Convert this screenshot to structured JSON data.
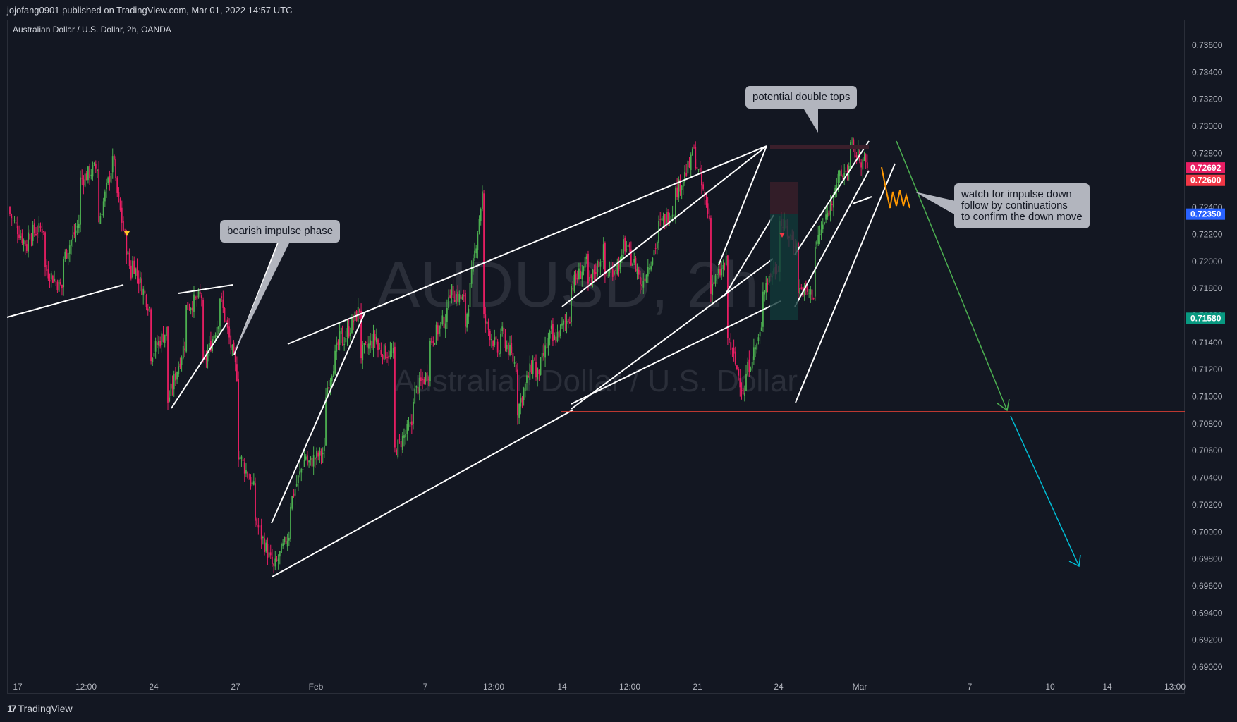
{
  "header": {
    "publish_text": "jojofang0901 published on TradingView.com, Mar 01, 2022 14:57 UTC"
  },
  "legend": {
    "symbol_text": "Australian Dollar / U.S. Dollar, 2h, OANDA"
  },
  "watermark": {
    "symbol": "AUDUSD, 2h",
    "name": "Australian Dollar / U.S. Dollar"
  },
  "footer": {
    "brand": "TradingView"
  },
  "annotations": {
    "bearish": "bearish impulse phase",
    "double_tops": "potential double tops",
    "watch": "watch for impulse down\nfollow by continuations\nto confirm the down move"
  },
  "colors": {
    "background": "#131722",
    "up": "#4caf50",
    "down": "#e91e63",
    "support": "#f44336",
    "arrow_green": "#4caf50",
    "arrow_cyan": "#00bcd4",
    "projection": "#ff9800"
  },
  "chart_data": {
    "type": "candlestick",
    "title": "Australian Dollar / U.S. Dollar, 2h, OANDA",
    "y_axis": {
      "min": 0.689,
      "max": 0.7375,
      "ticks": [
        0.736,
        0.734,
        0.732,
        0.73,
        0.728,
        0.726,
        0.724,
        0.722,
        0.72,
        0.718,
        0.716,
        0.714,
        0.712,
        0.71,
        0.708,
        0.706,
        0.704,
        0.702,
        0.7,
        0.698,
        0.696,
        0.694,
        0.692,
        0.69
      ],
      "tick_labels": [
        "0.73600",
        "0.73400",
        "0.73200",
        "0.73000",
        "0.72800",
        "0.72600",
        "0.72400",
        "0.72200",
        "0.72000",
        "0.71800",
        "0.71600",
        "0.71400",
        "0.71200",
        "0.71000",
        "0.70800",
        "0.70600",
        "0.70400",
        "0.70200",
        "0.70000",
        "0.69800",
        "0.69600",
        "0.69400",
        "0.69200",
        "0.69000"
      ]
    },
    "x_axis": {
      "tick_labels": [
        "17",
        "12:00",
        "24",
        "27",
        "Feb",
        "7",
        "12:00",
        "14",
        "12:00",
        "21",
        "24",
        "Mar",
        "7",
        "10",
        "14",
        "13:00"
      ]
    },
    "price_labels": [
      {
        "value": 0.72692,
        "text": "0.72692",
        "color": "#e91e63"
      },
      {
        "value": 0.726,
        "text": "0.72600",
        "color": "#f23645"
      },
      {
        "value": 0.7235,
        "text": "0.72350",
        "color": "#2962ff"
      },
      {
        "value": 0.7158,
        "text": "0.71580",
        "color": "#089981"
      }
    ],
    "price_path": [
      [
        0.724,
        0.7235
      ],
      [
        0.721,
        0.722
      ],
      [
        0.7225,
        0.7195
      ],
      [
        0.718,
        0.72
      ],
      [
        0.723,
        0.726
      ],
      [
        0.727,
        0.7225
      ],
      [
        0.728,
        0.726
      ],
      [
        0.7185,
        0.72
      ],
      [
        0.7165,
        0.713
      ],
      [
        0.715,
        0.7095
      ],
      [
        0.714,
        0.7165
      ],
      [
        0.7175,
        0.712
      ],
      [
        0.716,
        0.7175
      ],
      [
        0.7115,
        0.706
      ],
      [
        0.703,
        0.701
      ],
      [
        0.6975,
        0.697
      ],
      [
        0.7,
        0.702
      ],
      [
        0.706,
        0.705
      ],
      [
        0.706,
        0.71
      ],
      [
        0.715,
        0.714
      ],
      [
        0.7165,
        0.713
      ],
      [
        0.7145,
        0.7135
      ],
      [
        0.713,
        0.706
      ],
      [
        0.708,
        0.71
      ],
      [
        0.712,
        0.714
      ],
      [
        0.716,
        0.718
      ],
      [
        0.717,
        0.715
      ],
      [
        0.725,
        0.716
      ],
      [
        0.713,
        0.715
      ],
      [
        0.712,
        0.709
      ],
      [
        0.713,
        0.711
      ],
      [
        0.715,
        0.714
      ],
      [
        0.716,
        0.718
      ],
      [
        0.72,
        0.718
      ],
      [
        0.721,
        0.719
      ],
      [
        0.72,
        0.7215
      ],
      [
        0.719,
        0.718
      ],
      [
        0.7215,
        0.7225
      ],
      [
        0.724,
        0.725
      ],
      [
        0.7275,
        0.7285
      ],
      [
        0.723,
        0.718
      ],
      [
        0.72,
        0.7145
      ],
      [
        0.71,
        0.7115
      ],
      [
        0.715,
        0.718
      ],
      [
        0.72,
        0.723
      ],
      [
        0.721,
        0.718
      ],
      [
        0.7175,
        0.721
      ],
      [
        0.7245,
        0.7255
      ],
      [
        0.727,
        0.7285
      ],
      [
        0.727,
        0.726
      ]
    ],
    "support_level": 0.70888,
    "x_projection": [
      "Mar",
      "7",
      "10",
      "14"
    ]
  }
}
